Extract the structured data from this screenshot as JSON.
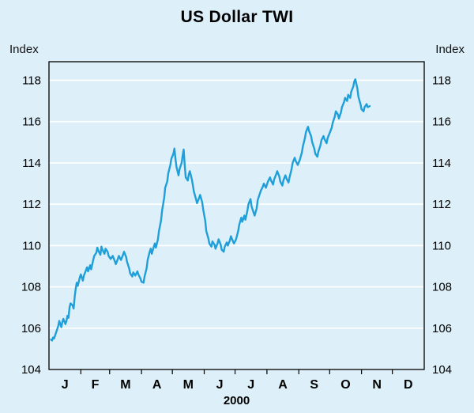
{
  "chart_data": {
    "type": "line",
    "title": "US Dollar TWI",
    "y_unit": "Index",
    "x_year_label": "2000",
    "month_labels": [
      "J",
      "F",
      "M",
      "A",
      "M",
      "J",
      "J",
      "A",
      "S",
      "O",
      "N",
      "D"
    ],
    "month_boundaries": [
      0,
      31,
      59,
      90,
      120,
      151,
      181,
      212,
      243,
      273,
      304,
      334,
      365
    ],
    "x_range": [
      0,
      365
    ],
    "ylim": [
      104,
      118.9
    ],
    "y_ticks": [
      104,
      106,
      108,
      110,
      112,
      114,
      116,
      118
    ],
    "grid": "horizontal-white-gridlines",
    "legend": "none",
    "colors": {
      "background": "#ddeff8",
      "line": "#1e9fd9",
      "grid": "#ffffff",
      "frame": "#000000",
      "text": "#000000"
    },
    "series": [
      {
        "name": "US Dollar TWI",
        "color": "#1e9fd9",
        "points": [
          [
            2,
            105.45
          ],
          [
            3,
            105.4
          ],
          [
            4,
            105.55
          ],
          [
            5,
            105.5
          ],
          [
            7,
            105.8
          ],
          [
            9,
            106.1
          ],
          [
            10,
            106.35
          ],
          [
            11,
            106.2
          ],
          [
            12,
            106.05
          ],
          [
            13,
            106.3
          ],
          [
            14,
            106.45
          ],
          [
            16,
            106.2
          ],
          [
            17,
            106.35
          ],
          [
            18,
            106.6
          ],
          [
            19,
            106.5
          ],
          [
            20,
            107.0
          ],
          [
            21,
            107.2
          ],
          [
            23,
            107.1
          ],
          [
            24,
            106.95
          ],
          [
            25,
            107.5
          ],
          [
            26,
            107.9
          ],
          [
            27,
            108.2
          ],
          [
            28,
            108.05
          ],
          [
            30,
            108.45
          ],
          [
            31,
            108.6
          ],
          [
            33,
            108.3
          ],
          [
            34,
            108.55
          ],
          [
            36,
            108.8
          ],
          [
            37,
            108.95
          ],
          [
            38,
            108.75
          ],
          [
            40,
            109.05
          ],
          [
            41,
            108.85
          ],
          [
            43,
            109.3
          ],
          [
            44,
            109.5
          ],
          [
            46,
            109.65
          ],
          [
            47,
            109.9
          ],
          [
            48,
            109.75
          ],
          [
            50,
            109.55
          ],
          [
            51,
            109.95
          ],
          [
            52,
            109.8
          ],
          [
            54,
            109.6
          ],
          [
            55,
            109.85
          ],
          [
            57,
            109.7
          ],
          [
            58,
            109.5
          ],
          [
            60,
            109.35
          ],
          [
            62,
            109.5
          ],
          [
            64,
            109.25
          ],
          [
            65,
            109.1
          ],
          [
            67,
            109.35
          ],
          [
            68,
            109.5
          ],
          [
            70,
            109.3
          ],
          [
            72,
            109.55
          ],
          [
            73,
            109.7
          ],
          [
            75,
            109.45
          ],
          [
            76,
            109.2
          ],
          [
            78,
            108.9
          ],
          [
            79,
            108.65
          ],
          [
            81,
            108.5
          ],
          [
            82,
            108.7
          ],
          [
            84,
            108.55
          ],
          [
            86,
            108.75
          ],
          [
            87,
            108.6
          ],
          [
            89,
            108.4
          ],
          [
            90,
            108.25
          ],
          [
            92,
            108.2
          ],
          [
            93,
            108.5
          ],
          [
            95,
            108.9
          ],
          [
            96,
            109.3
          ],
          [
            98,
            109.7
          ],
          [
            99,
            109.85
          ],
          [
            100,
            109.6
          ],
          [
            102,
            109.95
          ],
          [
            103,
            110.1
          ],
          [
            104,
            109.9
          ],
          [
            106,
            110.3
          ],
          [
            107,
            110.7
          ],
          [
            109,
            111.2
          ],
          [
            110,
            111.7
          ],
          [
            112,
            112.3
          ],
          [
            113,
            112.8
          ],
          [
            115,
            113.1
          ],
          [
            116,
            113.5
          ],
          [
            118,
            113.9
          ],
          [
            119,
            114.2
          ],
          [
            121,
            114.45
          ],
          [
            122,
            114.7
          ],
          [
            123,
            114.2
          ],
          [
            124,
            113.8
          ],
          [
            126,
            113.4
          ],
          [
            127,
            113.7
          ],
          [
            129,
            114.0
          ],
          [
            130,
            114.35
          ],
          [
            131,
            114.65
          ],
          [
            132,
            113.9
          ],
          [
            133,
            113.3
          ],
          [
            135,
            113.15
          ],
          [
            136,
            113.45
          ],
          [
            137,
            113.6
          ],
          [
            139,
            113.2
          ],
          [
            140,
            112.9
          ],
          [
            141,
            112.6
          ],
          [
            143,
            112.25
          ],
          [
            144,
            112.05
          ],
          [
            146,
            112.3
          ],
          [
            147,
            112.45
          ],
          [
            149,
            112.1
          ],
          [
            150,
            111.75
          ],
          [
            152,
            111.2
          ],
          [
            153,
            110.7
          ],
          [
            155,
            110.35
          ],
          [
            156,
            110.1
          ],
          [
            158,
            109.95
          ],
          [
            159,
            110.2
          ],
          [
            161,
            110.05
          ],
          [
            162,
            109.85
          ],
          [
            164,
            110.1
          ],
          [
            165,
            110.3
          ],
          [
            167,
            110.05
          ],
          [
            168,
            109.8
          ],
          [
            170,
            109.7
          ],
          [
            171,
            109.95
          ],
          [
            173,
            110.15
          ],
          [
            174,
            110.0
          ],
          [
            176,
            110.25
          ],
          [
            177,
            110.45
          ],
          [
            179,
            110.2
          ],
          [
            180,
            110.1
          ],
          [
            182,
            110.3
          ],
          [
            184,
            110.7
          ],
          [
            185,
            111.0
          ],
          [
            187,
            111.35
          ],
          [
            188,
            111.15
          ],
          [
            190,
            111.45
          ],
          [
            191,
            111.25
          ],
          [
            193,
            111.7
          ],
          [
            194,
            112.0
          ],
          [
            196,
            112.25
          ],
          [
            197,
            111.9
          ],
          [
            199,
            111.6
          ],
          [
            200,
            111.45
          ],
          [
            202,
            111.8
          ],
          [
            203,
            112.2
          ],
          [
            205,
            112.5
          ],
          [
            206,
            112.65
          ],
          [
            208,
            112.85
          ],
          [
            209,
            113.0
          ],
          [
            211,
            112.8
          ],
          [
            213,
            113.1
          ],
          [
            215,
            113.3
          ],
          [
            216,
            113.15
          ],
          [
            218,
            112.95
          ],
          [
            219,
            113.2
          ],
          [
            221,
            113.45
          ],
          [
            222,
            113.6
          ],
          [
            224,
            113.35
          ],
          [
            225,
            113.1
          ],
          [
            227,
            112.9
          ],
          [
            228,
            113.15
          ],
          [
            230,
            113.4
          ],
          [
            231,
            113.25
          ],
          [
            233,
            113.05
          ],
          [
            234,
            113.3
          ],
          [
            236,
            113.7
          ],
          [
            237,
            114.0
          ],
          [
            239,
            114.25
          ],
          [
            240,
            114.1
          ],
          [
            242,
            113.9
          ],
          [
            244,
            114.15
          ],
          [
            246,
            114.5
          ],
          [
            247,
            114.8
          ],
          [
            249,
            115.2
          ],
          [
            250,
            115.5
          ],
          [
            252,
            115.75
          ],
          [
            253,
            115.55
          ],
          [
            255,
            115.3
          ],
          [
            256,
            115.0
          ],
          [
            258,
            114.7
          ],
          [
            259,
            114.45
          ],
          [
            261,
            114.3
          ],
          [
            262,
            114.55
          ],
          [
            264,
            114.85
          ],
          [
            265,
            115.1
          ],
          [
            267,
            115.3
          ],
          [
            268,
            115.15
          ],
          [
            270,
            114.95
          ],
          [
            271,
            115.2
          ],
          [
            273,
            115.45
          ],
          [
            275,
            115.7
          ],
          [
            276,
            115.95
          ],
          [
            278,
            116.25
          ],
          [
            279,
            116.5
          ],
          [
            281,
            116.35
          ],
          [
            282,
            116.15
          ],
          [
            284,
            116.45
          ],
          [
            285,
            116.7
          ],
          [
            287,
            116.95
          ],
          [
            288,
            117.15
          ],
          [
            290,
            117.0
          ],
          [
            291,
            117.3
          ],
          [
            293,
            117.15
          ],
          [
            294,
            117.45
          ],
          [
            296,
            117.7
          ],
          [
            297,
            117.95
          ],
          [
            298,
            118.05
          ],
          [
            300,
            117.6
          ],
          [
            301,
            117.2
          ],
          [
            303,
            116.85
          ],
          [
            304,
            116.6
          ],
          [
            306,
            116.5
          ],
          [
            307,
            116.7
          ],
          [
            309,
            116.85
          ],
          [
            310,
            116.7
          ],
          [
            312,
            116.75
          ]
        ]
      }
    ]
  }
}
